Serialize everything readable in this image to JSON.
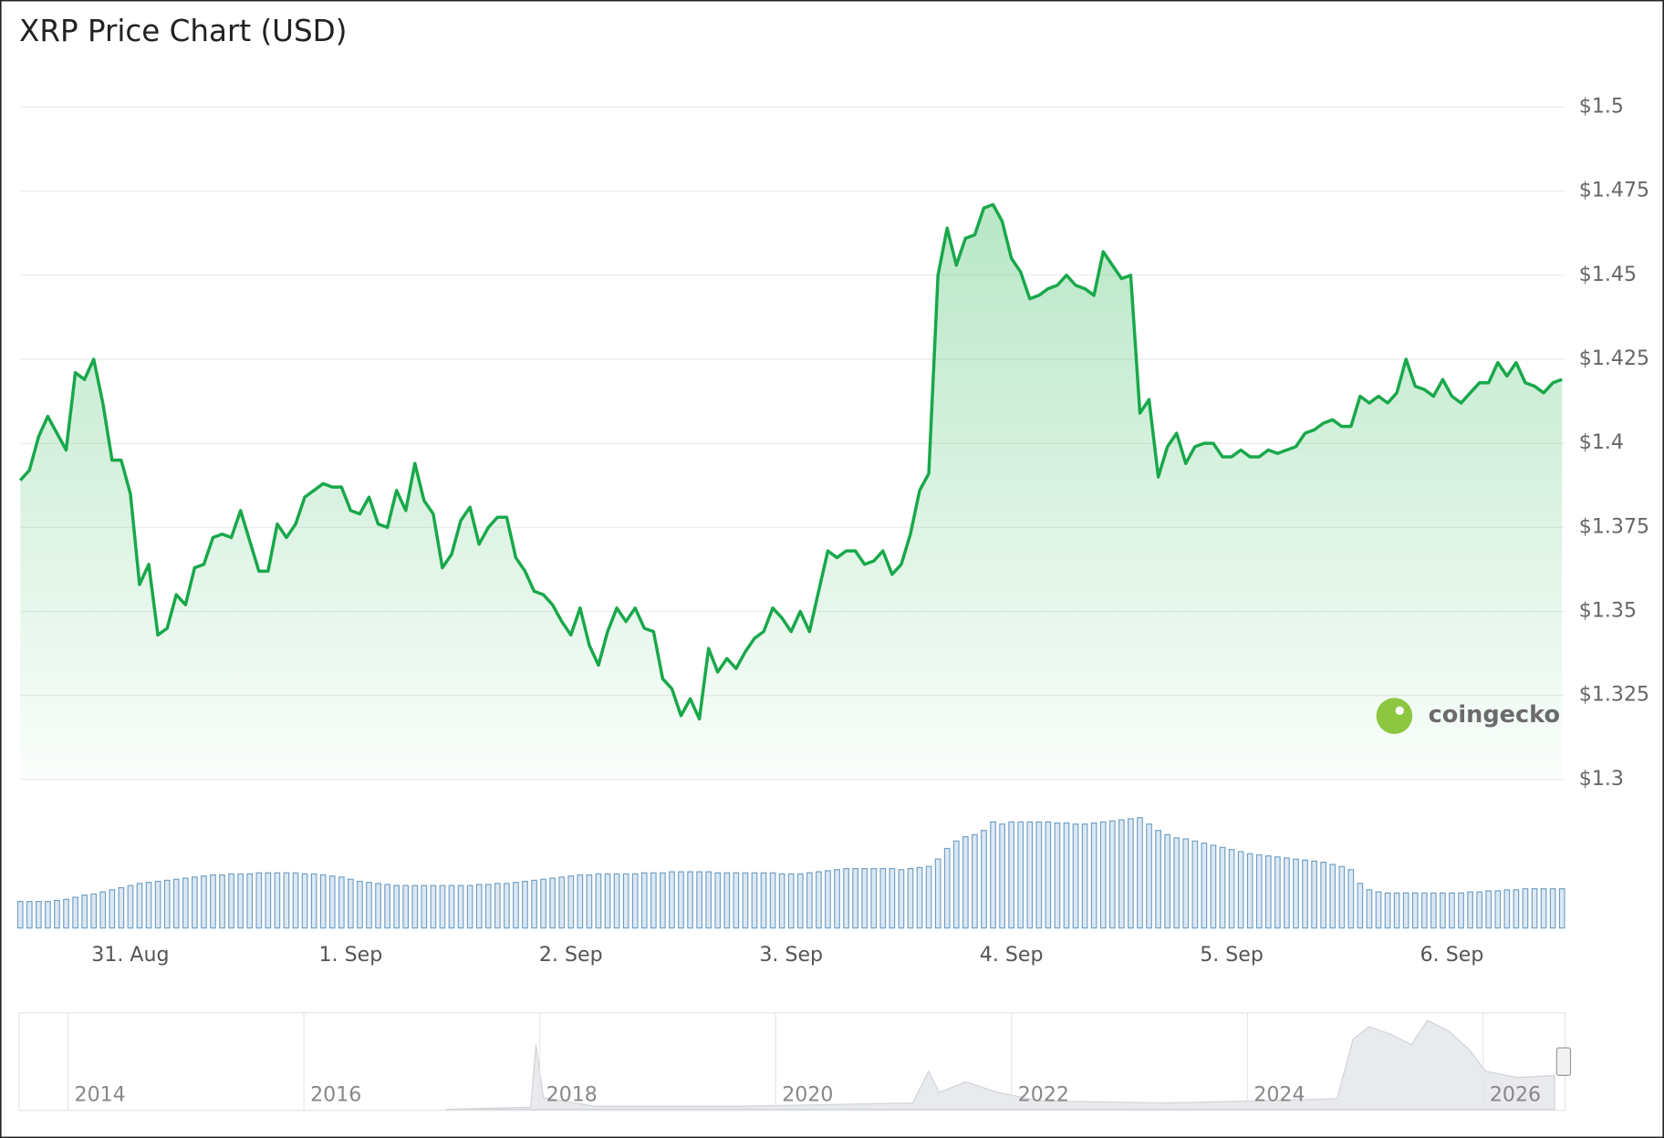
{
  "chart_data": {
    "type": "line",
    "title": "XRP Price Chart (USD)",
    "watermark": "coingecko",
    "color": "#18a84a",
    "volume_color": "#6f9fc6",
    "grid": true,
    "ylim": [
      1.3,
      1.5
    ],
    "yticks": [
      {
        "value": 1.3,
        "label": "$1.3"
      },
      {
        "value": 1.325,
        "label": "$1.325"
      },
      {
        "value": 1.35,
        "label": "$1.35"
      },
      {
        "value": 1.375,
        "label": "$1.375"
      },
      {
        "value": 1.4,
        "label": "$1.4"
      },
      {
        "value": 1.425,
        "label": "$1.425"
      },
      {
        "value": 1.45,
        "label": "$1.45"
      },
      {
        "value": 1.475,
        "label": "$1.475"
      },
      {
        "value": 1.5,
        "label": "$1.5"
      }
    ],
    "categories": [
      null,
      null,
      null,
      null,
      null,
      null,
      null,
      null,
      null,
      null,
      null,
      null,
      "31. Aug",
      null,
      null,
      null,
      null,
      null,
      null,
      null,
      null,
      null,
      null,
      null,
      null,
      null,
      null,
      null,
      null,
      null,
      null,
      null,
      null,
      null,
      null,
      null,
      "1. Sep",
      null,
      null,
      null,
      null,
      null,
      null,
      null,
      null,
      null,
      null,
      null,
      null,
      null,
      null,
      null,
      null,
      null,
      null,
      null,
      null,
      null,
      null,
      null,
      "2. Sep",
      null,
      null,
      null,
      null,
      null,
      null,
      null,
      null,
      null,
      null,
      null,
      null,
      null,
      null,
      null,
      null,
      null,
      null,
      null,
      null,
      null,
      null,
      null,
      "3. Sep",
      null,
      null,
      null,
      null,
      null,
      null,
      null,
      null,
      null,
      null,
      null,
      null,
      null,
      null,
      null,
      null,
      null,
      null,
      null,
      null,
      null,
      null,
      null,
      "4. Sep",
      null,
      null,
      null,
      null,
      null,
      null,
      null,
      null,
      null,
      null,
      null,
      null,
      null,
      null,
      null,
      null,
      null,
      null,
      null,
      null,
      null,
      null,
      null,
      "5. Sep",
      null,
      null,
      null,
      null,
      null,
      null,
      null,
      null,
      null,
      null,
      null,
      null,
      null,
      null,
      null,
      null,
      null,
      null,
      null,
      null,
      null,
      null,
      null,
      "6. Sep",
      null,
      null,
      null,
      null,
      null,
      null,
      null,
      null,
      null,
      null,
      null,
      null
    ],
    "series": [
      {
        "name": "Price",
        "values": [
          1.389,
          1.392,
          1.402,
          1.408,
          1.403,
          1.398,
          1.421,
          1.419,
          1.425,
          1.412,
          1.395,
          1.395,
          1.385,
          1.358,
          1.364,
          1.343,
          1.345,
          1.355,
          1.352,
          1.363,
          1.364,
          1.372,
          1.373,
          1.372,
          1.38,
          1.371,
          1.362,
          1.362,
          1.376,
          1.372,
          1.376,
          1.384,
          1.386,
          1.388,
          1.387,
          1.387,
          1.38,
          1.379,
          1.384,
          1.376,
          1.375,
          1.386,
          1.38,
          1.394,
          1.383,
          1.379,
          1.363,
          1.367,
          1.377,
          1.381,
          1.37,
          1.375,
          1.378,
          1.378,
          1.366,
          1.362,
          1.356,
          1.355,
          1.352,
          1.347,
          1.343,
          1.351,
          1.34,
          1.334,
          1.344,
          1.351,
          1.347,
          1.351,
          1.345,
          1.344,
          1.33,
          1.327,
          1.319,
          1.324,
          1.318,
          1.339,
          1.332,
          1.336,
          1.333,
          1.338,
          1.342,
          1.344,
          1.351,
          1.348,
          1.344,
          1.35,
          1.344,
          1.356,
          1.368,
          1.366,
          1.368,
          1.368,
          1.364,
          1.365,
          1.368,
          1.361,
          1.364,
          1.373,
          1.386,
          1.391,
          1.45,
          1.464,
          1.453,
          1.461,
          1.462,
          1.47,
          1.471,
          1.466,
          1.455,
          1.451,
          1.443,
          1.444,
          1.446,
          1.447,
          1.45,
          1.447,
          1.446,
          1.444,
          1.457,
          1.453,
          1.449,
          1.45,
          1.409,
          1.413,
          1.39,
          1.399,
          1.403,
          1.394,
          1.399,
          1.4,
          1.4,
          1.396,
          1.396,
          1.398,
          1.396,
          1.396,
          1.398,
          1.397,
          1.398,
          1.399,
          1.403,
          1.404,
          1.406,
          1.407,
          1.405,
          1.405,
          1.414,
          1.412,
          1.414,
          1.412,
          1.415,
          1.425,
          1.417,
          1.416,
          1.414,
          1.419,
          1.414,
          1.412,
          1.415,
          1.418,
          1.418,
          1.424,
          1.42,
          1.424,
          1.418,
          1.417,
          1.415,
          1.418,
          1.419
        ]
      },
      {
        "name": "Volume",
        "values": [
          25,
          25,
          25,
          25,
          26,
          27,
          29,
          31,
          32,
          34,
          36,
          38,
          40,
          42,
          43,
          44,
          45,
          46,
          47,
          48,
          49,
          50,
          50,
          51,
          51,
          51,
          52,
          52,
          52,
          52,
          52,
          51,
          51,
          50,
          49,
          48,
          46,
          44,
          43,
          42,
          41,
          40,
          40,
          40,
          40,
          40,
          40,
          40,
          40,
          40,
          41,
          41,
          42,
          42,
          43,
          44,
          45,
          46,
          47,
          48,
          49,
          50,
          50,
          51,
          51,
          51,
          51,
          51,
          52,
          52,
          52,
          53,
          53,
          53,
          53,
          53,
          52,
          52,
          52,
          52,
          52,
          52,
          52,
          51,
          51,
          51,
          52,
          53,
          54,
          55,
          56,
          56,
          56,
          56,
          56,
          56,
          55,
          56,
          57,
          58,
          65,
          75,
          82,
          86,
          88,
          92,
          100,
          98,
          100,
          100,
          100,
          100,
          100,
          99,
          99,
          98,
          98,
          99,
          100,
          101,
          102,
          103,
          104,
          98,
          92,
          88,
          85,
          84,
          82,
          80,
          78,
          76,
          74,
          72,
          70,
          69,
          68,
          67,
          66,
          65,
          64,
          63,
          62,
          60,
          58,
          55,
          42,
          36,
          34,
          33,
          33,
          33,
          33,
          33,
          33,
          33,
          33,
          33,
          34,
          34,
          35,
          35,
          36,
          36,
          37,
          37,
          37,
          37,
          37
        ]
      }
    ],
    "navigator": {
      "labels": [
        "2014",
        "2016",
        "2018",
        "2020",
        "2022",
        "2024",
        "2026"
      ]
    }
  }
}
